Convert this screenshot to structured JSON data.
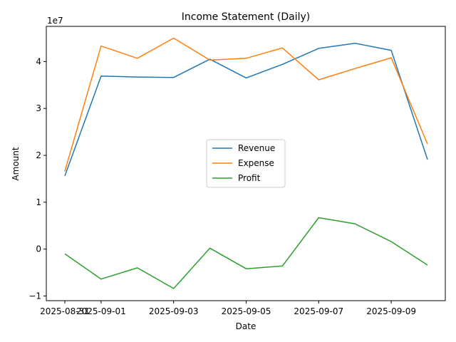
{
  "chart_data": {
    "type": "line",
    "title": "Income Statement (Daily)",
    "xlabel": "Date",
    "ylabel": "Amount",
    "y_offset_label": "1e7",
    "x": [
      "2025-08-31",
      "2025-09-01",
      "2025-09-02",
      "2025-09-03",
      "2025-09-04",
      "2025-09-05",
      "2025-09-06",
      "2025-09-07",
      "2025-09-08",
      "2025-09-09",
      "2025-09-10"
    ],
    "x_tick_labels": [
      "2025-08-31",
      "2025-09-01",
      "2025-09-03",
      "2025-09-05",
      "2025-09-07",
      "2025-09-09"
    ],
    "y_ticks": [
      -1,
      0,
      1,
      2,
      3,
      4
    ],
    "ylim": [
      -1.1,
      4.75
    ],
    "y_unit_scale": 10000000,
    "grid": false,
    "legend_position": "center",
    "series": [
      {
        "name": "Revenue",
        "color": "#1f77b4",
        "values": [
          15600000,
          36900000,
          36700000,
          36600000,
          40500000,
          36500000,
          39400000,
          42800000,
          43900000,
          42400000,
          19100000
        ]
      },
      {
        "name": "Expense",
        "color": "#ff7f0e",
        "values": [
          16600000,
          43300000,
          40700000,
          45000000,
          40300000,
          40700000,
          42900000,
          36100000,
          38500000,
          40800000,
          22400000
        ]
      },
      {
        "name": "Profit",
        "color": "#2ca02c",
        "values": [
          -1000000,
          -6400000,
          -4000000,
          -8400000,
          200000,
          -4200000,
          -3600000,
          6700000,
          5400000,
          1600000,
          -3400000
        ]
      }
    ]
  }
}
